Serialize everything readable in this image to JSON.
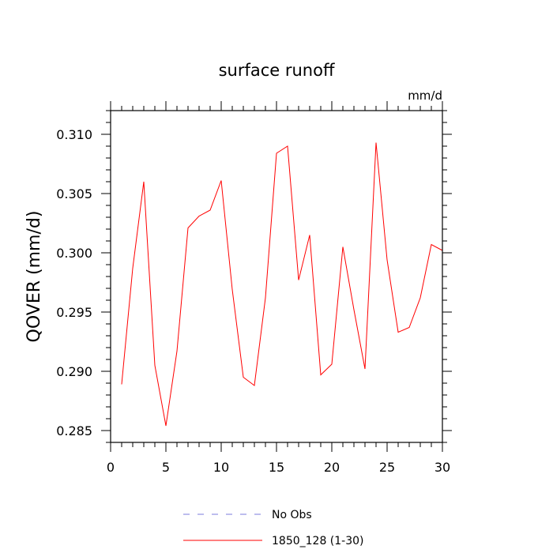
{
  "chart_data": {
    "type": "line",
    "title": "surface runoff",
    "units_label": "mm/d",
    "xlabel": "",
    "ylabel": "QOVER  (mm/d)",
    "xlim": [
      0,
      30
    ],
    "ylim": [
      0.284,
      0.312
    ],
    "x_ticks": [
      0,
      5,
      10,
      15,
      20,
      25,
      30
    ],
    "x_tick_labels": [
      "0",
      "5",
      "10",
      "15",
      "20",
      "25",
      "30"
    ],
    "y_ticks": [
      0.285,
      0.29,
      0.295,
      0.3,
      0.305,
      0.31
    ],
    "y_tick_labels": [
      "0.285",
      "0.290",
      "0.295",
      "0.300",
      "0.305",
      "0.310"
    ],
    "grid": false,
    "legend_position": "bottom",
    "legend": [
      {
        "label": "No Obs",
        "color": "#7b7bdc",
        "dash": true
      },
      {
        "label": "1850_128 (1-30)",
        "color": "#ff0000",
        "dash": false
      }
    ],
    "series": [
      {
        "name": "1850_128 (1-30)",
        "color": "#ff0000",
        "x": [
          1,
          2,
          3,
          4,
          5,
          6,
          7,
          8,
          9,
          10,
          11,
          12,
          13,
          14,
          15,
          16,
          17,
          18,
          19,
          20,
          21,
          22,
          23,
          24,
          25,
          26,
          27,
          28,
          29,
          30
        ],
        "values": [
          0.2889,
          0.2987,
          0.306,
          0.2905,
          0.2854,
          0.2917,
          0.3021,
          0.3031,
          0.3036,
          0.3061,
          0.2969,
          0.2895,
          0.2888,
          0.2962,
          0.3084,
          0.309,
          0.2977,
          0.3015,
          0.2897,
          0.2906,
          0.3005,
          0.2952,
          0.2902,
          0.3093,
          0.2994,
          0.2933,
          0.2937,
          0.2962,
          0.3007,
          0.3002
        ]
      }
    ]
  }
}
